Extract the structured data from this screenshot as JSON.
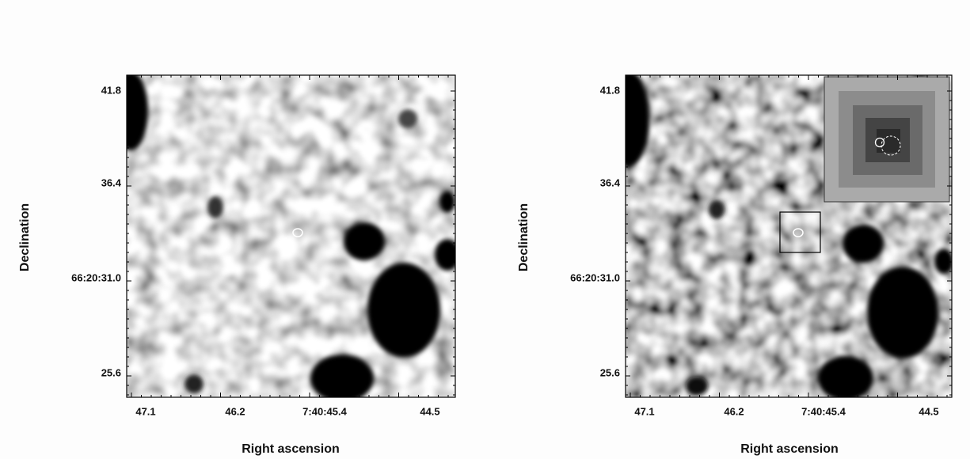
{
  "panels": [
    {
      "y_label": "Declination",
      "x_label": "Right ascension",
      "y_ticks": [
        "41.8",
        "36.4",
        "66:20:31.0",
        "25.6"
      ],
      "x_ticks": [
        "47.1",
        "46.2",
        "7:40:45.4",
        "44.5"
      ]
    },
    {
      "y_label": "Declination",
      "x_label": "Right ascension",
      "y_ticks": [
        "41.8",
        "36.4",
        "66:20:31.0",
        "25.6"
      ],
      "x_ticks": [
        "47.1",
        "46.2",
        "7:40:45.4",
        "44.5"
      ]
    }
  ]
}
